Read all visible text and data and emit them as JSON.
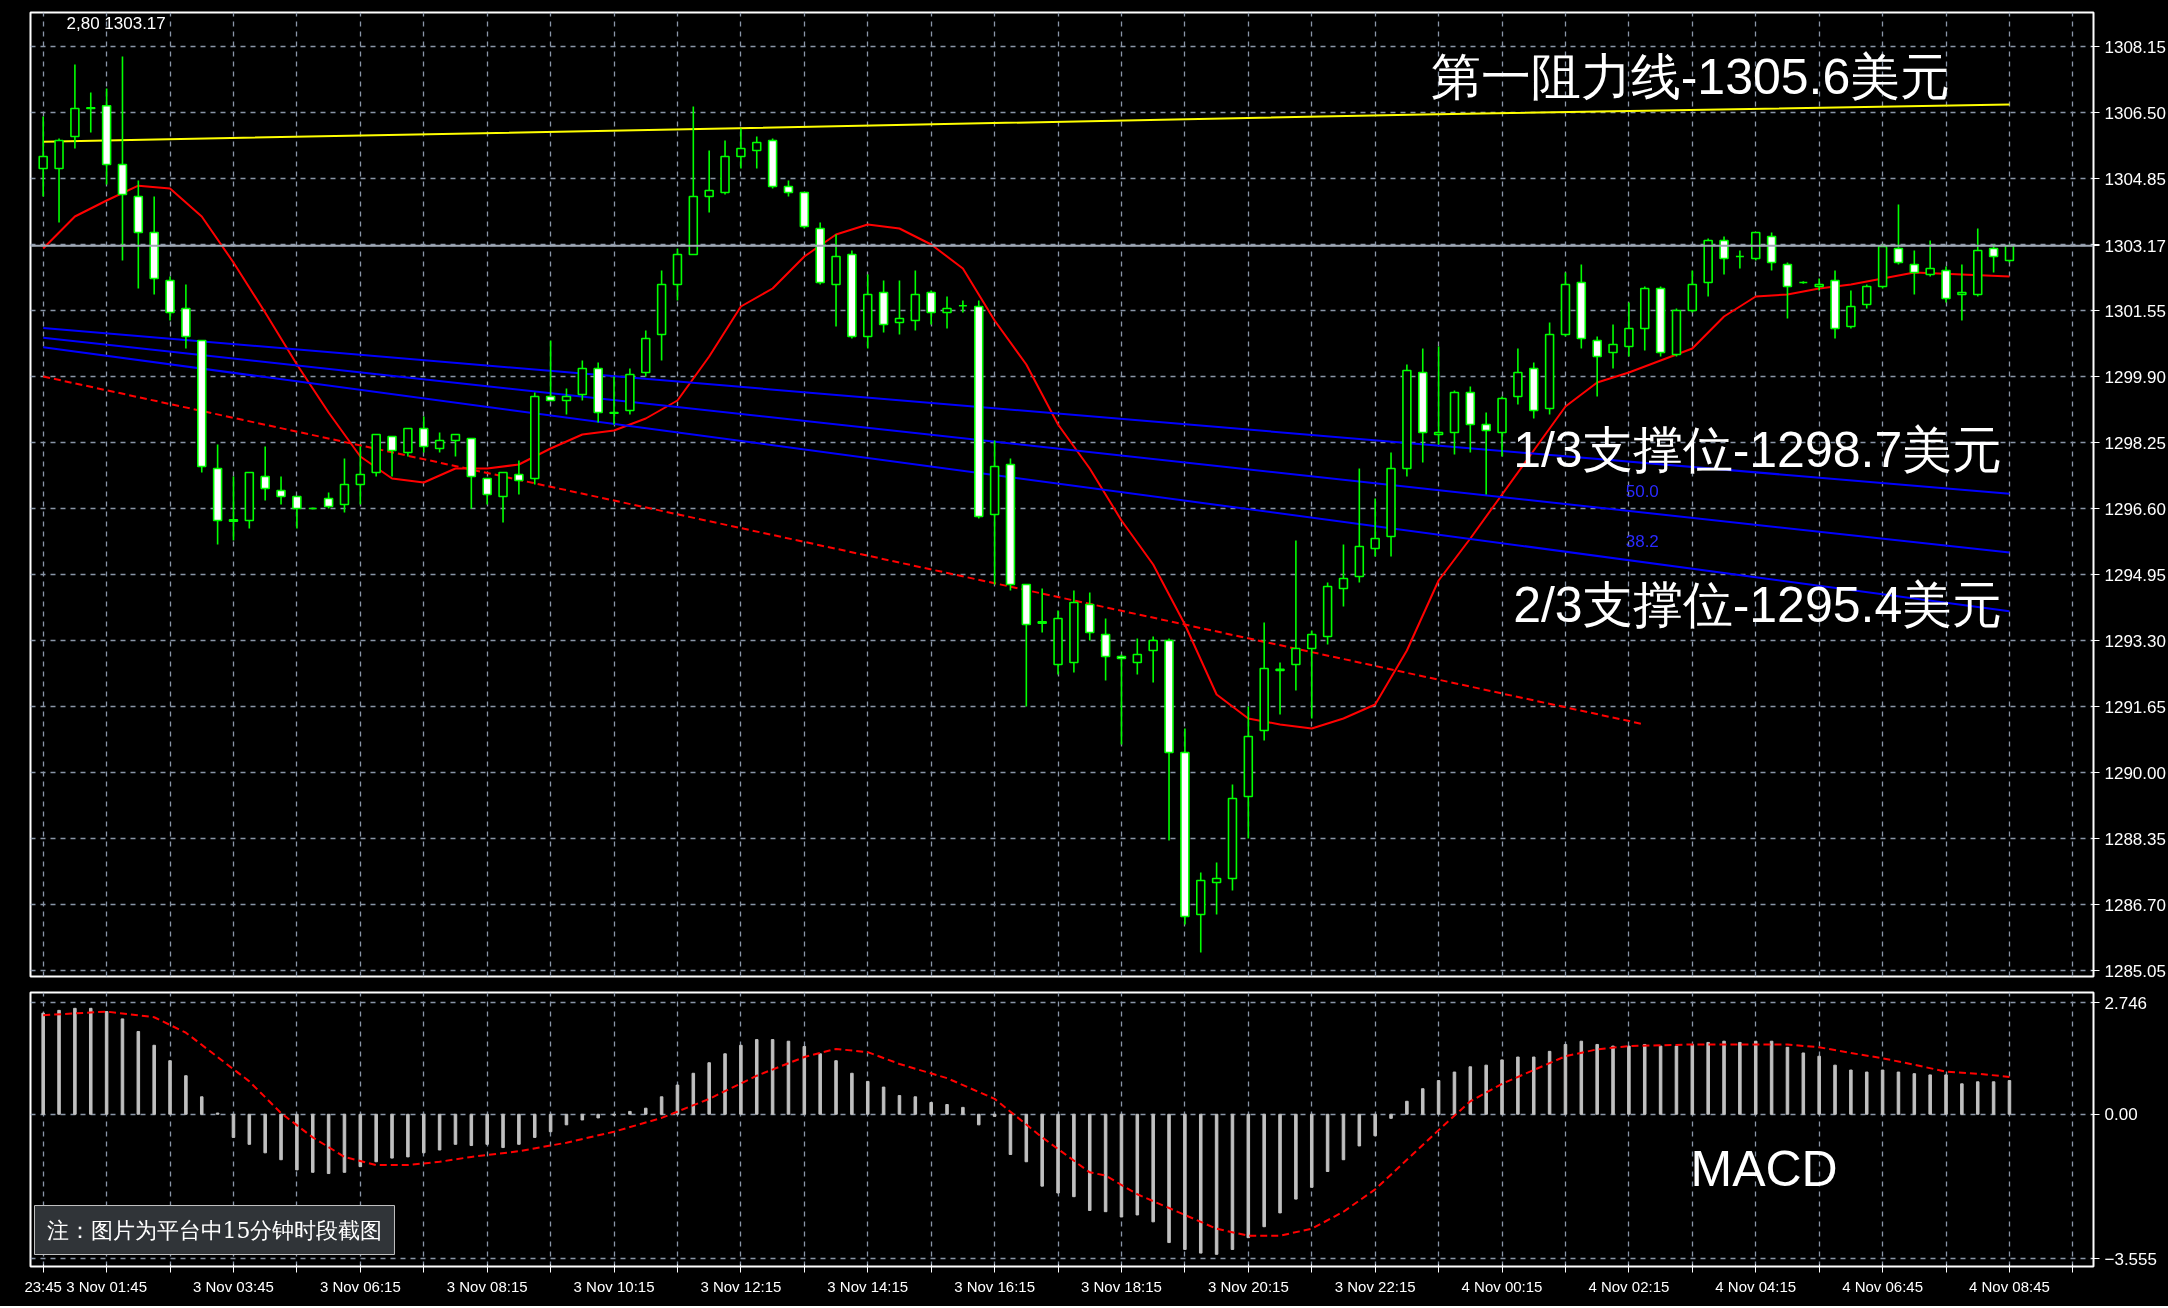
{
  "chart_data": [
    {
      "type": "candlestick",
      "categories": [
        null,
        null,
        null,
        null,
        null,
        null,
        null,
        null,
        null,
        null,
        null,
        null,
        null,
        null,
        null,
        null,
        null,
        null,
        null,
        null,
        null,
        null,
        null,
        null,
        null,
        null,
        null,
        null,
        null,
        null,
        null,
        null,
        null,
        null,
        null,
        null,
        null,
        null,
        null,
        null,
        null,
        null,
        null,
        null,
        null,
        null,
        null,
        null,
        null,
        null,
        null,
        null,
        null,
        null,
        null,
        null,
        null,
        null,
        null,
        null,
        null,
        null,
        null,
        null,
        null,
        null,
        null,
        null,
        null,
        null,
        null,
        null,
        null,
        null,
        null,
        null,
        null,
        null,
        null,
        null,
        null,
        null,
        null,
        null,
        null,
        null,
        null,
        null,
        null,
        null,
        null,
        null,
        null,
        null,
        null,
        null,
        null,
        null,
        null,
        null,
        null,
        null,
        null,
        null,
        null,
        null,
        null,
        null,
        null,
        null,
        null,
        null,
        null,
        null,
        null,
        null,
        null,
        null,
        null,
        null,
        null,
        null,
        null,
        null,
        null
      ],
      "ohlc": [
        [
          1305.1,
          1306.4,
          1304.4,
          1305.4
        ],
        [
          1305.1,
          1305.85,
          1303.75,
          1305.8
        ],
        [
          1305.9,
          1307.7,
          1305.6,
          1306.6
        ],
        [
          1306.6,
          1307.0,
          1306.0,
          1306.62
        ],
        [
          1306.67,
          1307.1,
          1304.7,
          1305.2
        ],
        [
          1305.2,
          1307.9,
          1302.8,
          1304.45
        ],
        [
          1304.4,
          1304.8,
          1302.1,
          1303.5
        ],
        [
          1303.5,
          1304.4,
          1301.95,
          1302.35
        ],
        [
          1302.3,
          1302.4,
          1301.3,
          1301.5
        ],
        [
          1301.6,
          1302.2,
          1300.6,
          1300.9
        ],
        [
          1300.8,
          1300.8,
          1297.5,
          1297.65
        ],
        [
          1297.6,
          1298.2,
          1295.7,
          1296.3
        ],
        [
          1296.32,
          1297.4,
          1295.8,
          1296.28
        ],
        [
          1296.3,
          1297.5,
          1296.1,
          1297.5
        ],
        [
          1297.4,
          1298.15,
          1296.8,
          1297.1
        ],
        [
          1297.05,
          1297.4,
          1296.7,
          1296.9
        ],
        [
          1296.9,
          1296.9,
          1296.1,
          1296.6
        ],
        [
          1296.6,
          1296.62,
          1296.58,
          1296.6
        ],
        [
          1296.85,
          1297.0,
          1296.6,
          1296.65
        ],
        [
          1296.7,
          1297.85,
          1296.5,
          1297.2
        ],
        [
          1297.2,
          1298.15,
          1296.7,
          1297.45
        ],
        [
          1297.5,
          1298.45,
          1297.4,
          1298.45
        ],
        [
          1298.4,
          1298.4,
          1297.4,
          1298.05
        ],
        [
          1298.0,
          1298.6,
          1297.9,
          1298.6
        ],
        [
          1298.6,
          1298.9,
          1298.0,
          1298.15
        ],
        [
          1298.1,
          1298.5,
          1298.0,
          1298.3
        ],
        [
          1298.3,
          1298.45,
          1297.9,
          1298.45
        ],
        [
          1298.35,
          1298.35,
          1296.6,
          1297.4
        ],
        [
          1297.35,
          1297.35,
          1296.7,
          1296.95
        ],
        [
          1296.9,
          1297.5,
          1296.25,
          1297.5
        ],
        [
          1297.45,
          1297.8,
          1296.95,
          1297.3
        ],
        [
          1297.35,
          1299.5,
          1297.2,
          1299.4
        ],
        [
          1299.4,
          1300.8,
          1299.3,
          1299.3
        ],
        [
          1299.3,
          1299.6,
          1298.95,
          1299.4
        ],
        [
          1299.45,
          1300.3,
          1299.3,
          1300.1
        ],
        [
          1300.1,
          1300.25,
          1298.75,
          1299.0
        ],
        [
          1299.0,
          1299.9,
          1298.7,
          1298.98
        ],
        [
          1299.05,
          1300.1,
          1298.95,
          1299.95
        ],
        [
          1300.0,
          1301.05,
          1299.9,
          1300.85
        ],
        [
          1300.95,
          1302.55,
          1300.3,
          1302.2
        ],
        [
          1302.2,
          1303.1,
          1301.8,
          1302.95
        ],
        [
          1302.95,
          1306.65,
          1302.95,
          1304.4
        ],
        [
          1304.4,
          1305.55,
          1304.0,
          1304.55
        ],
        [
          1304.5,
          1305.8,
          1304.45,
          1305.4
        ],
        [
          1305.4,
          1306.1,
          1305.1,
          1305.6
        ],
        [
          1305.55,
          1305.9,
          1305.1,
          1305.75
        ],
        [
          1305.8,
          1305.85,
          1304.6,
          1304.65
        ],
        [
          1304.65,
          1304.8,
          1304.4,
          1304.5
        ],
        [
          1304.5,
          1304.5,
          1303.6,
          1303.65
        ],
        [
          1303.6,
          1303.75,
          1302.2,
          1302.25
        ],
        [
          1302.2,
          1303.45,
          1301.15,
          1302.9
        ],
        [
          1302.95,
          1303.05,
          1300.85,
          1300.9
        ],
        [
          1300.9,
          1302.45,
          1300.6,
          1301.95
        ],
        [
          1302.0,
          1302.3,
          1301.0,
          1301.2
        ],
        [
          1301.25,
          1302.3,
          1300.95,
          1301.35
        ],
        [
          1301.3,
          1302.55,
          1301.05,
          1301.95
        ],
        [
          1302.0,
          1302.05,
          1301.2,
          1301.5
        ],
        [
          1301.5,
          1301.9,
          1301.1,
          1301.6
        ],
        [
          1301.67,
          1301.8,
          1301.5,
          1301.67
        ],
        [
          1301.65,
          1301.8,
          1296.35,
          1296.4
        ],
        [
          1296.45,
          1298.3,
          1294.7,
          1297.65
        ],
        [
          1297.7,
          1297.85,
          1294.55,
          1294.7
        ],
        [
          1294.7,
          1294.7,
          1291.65,
          1293.7
        ],
        [
          1293.77,
          1294.6,
          1293.5,
          1293.73
        ],
        [
          1292.7,
          1294.05,
          1292.45,
          1293.85
        ],
        [
          1292.75,
          1294.55,
          1292.5,
          1294.25
        ],
        [
          1294.2,
          1294.5,
          1293.3,
          1293.5
        ],
        [
          1293.45,
          1293.85,
          1292.3,
          1292.9
        ],
        [
          1292.9,
          1292.95,
          1290.7,
          1292.85
        ],
        [
          1292.75,
          1293.35,
          1292.45,
          1292.95
        ],
        [
          1293.05,
          1293.4,
          1292.25,
          1293.3
        ],
        [
          1293.3,
          1293.35,
          1288.3,
          1290.5
        ],
        [
          1290.5,
          1291.1,
          1286.2,
          1286.4
        ],
        [
          1286.45,
          1287.5,
          1285.5,
          1287.3
        ],
        [
          1287.25,
          1287.75,
          1286.45,
          1287.35
        ],
        [
          1287.35,
          1289.7,
          1287.05,
          1289.35
        ],
        [
          1289.4,
          1291.65,
          1288.35,
          1290.9
        ],
        [
          1291.05,
          1293.75,
          1290.8,
          1292.6
        ],
        [
          1292.55,
          1292.75,
          1291.45,
          1292.58
        ],
        [
          1292.7,
          1295.8,
          1292.05,
          1293.1
        ],
        [
          1293.1,
          1293.55,
          1291.35,
          1293.45
        ],
        [
          1293.4,
          1294.75,
          1293.2,
          1294.65
        ],
        [
          1294.6,
          1295.7,
          1294.15,
          1294.85
        ],
        [
          1294.9,
          1297.6,
          1294.75,
          1295.65
        ],
        [
          1295.6,
          1296.85,
          1295.4,
          1295.85
        ],
        [
          1295.9,
          1298.0,
          1295.4,
          1297.6
        ],
        [
          1297.6,
          1300.2,
          1297.4,
          1300.05
        ],
        [
          1300.0,
          1300.6,
          1297.75,
          1298.5
        ],
        [
          1298.45,
          1300.65,
          1298.2,
          1298.5
        ],
        [
          1298.5,
          1299.55,
          1297.95,
          1299.5
        ],
        [
          1299.5,
          1299.65,
          1298.0,
          1298.7
        ],
        [
          1298.7,
          1299.0,
          1296.95,
          1298.55
        ],
        [
          1298.5,
          1299.4,
          1297.9,
          1299.35
        ],
        [
          1299.4,
          1300.6,
          1299.2,
          1300.0
        ],
        [
          1300.1,
          1300.25,
          1298.85,
          1299.05
        ],
        [
          1299.1,
          1301.25,
          1298.95,
          1300.95
        ],
        [
          1300.95,
          1302.5,
          1300.9,
          1302.2
        ],
        [
          1302.25,
          1302.7,
          1300.6,
          1300.85
        ],
        [
          1300.8,
          1300.9,
          1299.4,
          1300.4
        ],
        [
          1300.5,
          1301.2,
          1300.1,
          1300.7
        ],
        [
          1300.65,
          1301.75,
          1300.4,
          1301.1
        ],
        [
          1301.1,
          1302.15,
          1300.55,
          1302.1
        ],
        [
          1302.1,
          1302.15,
          1300.4,
          1300.5
        ],
        [
          1300.45,
          1301.6,
          1300.4,
          1301.55
        ],
        [
          1301.55,
          1302.55,
          1301.5,
          1302.2
        ],
        [
          1302.25,
          1303.35,
          1301.9,
          1303.3
        ],
        [
          1303.3,
          1303.4,
          1302.45,
          1302.85
        ],
        [
          1302.9,
          1303.05,
          1302.6,
          1302.9
        ],
        [
          1302.85,
          1303.5,
          1302.8,
          1303.5
        ],
        [
          1303.4,
          1303.5,
          1302.55,
          1302.75
        ],
        [
          1302.7,
          1302.75,
          1301.35,
          1302.15
        ],
        [
          1302.25,
          1302.28,
          1302.22,
          1302.25
        ],
        [
          1302.15,
          1302.35,
          1302.05,
          1302.2
        ],
        [
          1302.3,
          1302.55,
          1300.85,
          1301.1
        ],
        [
          1301.15,
          1302.05,
          1301.1,
          1301.65
        ],
        [
          1301.7,
          1302.2,
          1301.6,
          1302.15
        ],
        [
          1302.15,
          1303.2,
          1302.1,
          1303.15
        ],
        [
          1303.1,
          1304.2,
          1302.7,
          1302.75
        ],
        [
          1302.7,
          1303.05,
          1301.95,
          1302.5
        ],
        [
          1302.45,
          1303.3,
          1302.4,
          1302.6
        ],
        [
          1302.55,
          1302.65,
          1301.75,
          1301.85
        ],
        [
          1301.95,
          1302.7,
          1301.3,
          1302.0
        ],
        [
          1301.95,
          1303.6,
          1301.9,
          1303.05
        ],
        [
          1303.1,
          1303.2,
          1302.5,
          1302.9
        ],
        [
          1302.8,
          1303.2,
          1302.75,
          1303.17
        ]
      ],
      "series": [
        {
          "type": "line",
          "color": "#ffff00",
          "values": [
            1305.77,
            null,
            null,
            null,
            null,
            null,
            null,
            null,
            null,
            null,
            null,
            null,
            null,
            null,
            null,
            null,
            null,
            null,
            null,
            null,
            null,
            null,
            null,
            null,
            null,
            null,
            null,
            null,
            null,
            null,
            null,
            null,
            null,
            null,
            null,
            null,
            null,
            null,
            null,
            null,
            null,
            null,
            null,
            1306.1,
            null,
            null,
            null,
            null,
            null,
            null,
            null,
            null,
            null,
            null,
            null,
            null,
            null,
            null,
            null,
            null,
            null,
            null,
            null,
            null,
            null,
            null,
            null,
            null,
            null,
            null,
            null,
            null,
            null,
            null,
            null,
            null,
            null,
            null,
            null,
            null,
            null,
            null,
            null,
            null,
            null,
            null,
            null,
            1306.45,
            null,
            null,
            null,
            null,
            null,
            null,
            null,
            null,
            null,
            null,
            null,
            null,
            null,
            null,
            null,
            null,
            null,
            null,
            null,
            null,
            null,
            null,
            null,
            null,
            null,
            null,
            null,
            null,
            null,
            null,
            null,
            null,
            null,
            null,
            null,
            null,
            1306.7
          ]
        },
        {
          "type": "line",
          "color": "#ff0000",
          "values": [
            1303.1,
            null,
            1303.9,
            null,
            1304.3,
            null,
            1304.67,
            null,
            1304.6,
            null,
            1303.9,
            null,
            1302.75,
            null,
            1301.5,
            null,
            1300.2,
            null,
            1299.0,
            null,
            1297.9,
            null,
            1297.35,
            null,
            1297.25,
            null,
            1297.6,
            null,
            1297.6,
            null,
            1297.7,
            null,
            1298.1,
            null,
            1298.45,
            null,
            1298.55,
            null,
            1298.85,
            null,
            1299.3,
            null,
            1300.4,
            null,
            1301.65,
            null,
            1302.1,
            null,
            1302.9,
            null,
            1303.45,
            null,
            1303.7,
            null,
            1303.6,
            null,
            1303.2,
            null,
            1302.6,
            null,
            1301.3,
            null,
            1300.2,
            null,
            1298.7,
            null,
            1297.6,
            null,
            1296.3,
            null,
            1295.2,
            null,
            1293.7,
            null,
            1291.95,
            null,
            1291.35,
            null,
            1291.2,
            null,
            1291.1,
            null,
            1291.35,
            null,
            1291.7,
            null,
            1293.05,
            null,
            1294.8,
            null,
            1295.85,
            null,
            1296.95,
            null,
            1298.05,
            null,
            1299.15,
            null,
            1299.75,
            null,
            1300.0,
            null,
            1300.3,
            null,
            1300.6,
            null,
            1301.4,
            null,
            1301.9,
            null,
            1301.95,
            null,
            1302.1,
            null,
            1302.2,
            null,
            null,
            null,
            1302.5,
            null,
            null,
            null,
            null,
            null,
            1302.4
          ]
        },
        {
          "type": "line",
          "color": "#0000ff",
          "values": [
            1301.11,
            null,
            null,
            null,
            null,
            null,
            null,
            null,
            null,
            null,
            null,
            null,
            null,
            null,
            null,
            null,
            null,
            null,
            null,
            null,
            null,
            null,
            null,
            null,
            null,
            null,
            null,
            null,
            null,
            null,
            null,
            null,
            null,
            null,
            null,
            null,
            null,
            null,
            null,
            null,
            null,
            null,
            null,
            null,
            null,
            null,
            null,
            null,
            null,
            null,
            null,
            null,
            null,
            null,
            null,
            null,
            null,
            null,
            null,
            null,
            null,
            null,
            null,
            null,
            null,
            null,
            null,
            null,
            null,
            null,
            null,
            null,
            null,
            null,
            null,
            null,
            null,
            null,
            null,
            null,
            null,
            null,
            null,
            null,
            null,
            null,
            null,
            null,
            null,
            null,
            null,
            null,
            null,
            null,
            null,
            null,
            null,
            null,
            null,
            null,
            null,
            null,
            null,
            null,
            null,
            null,
            null,
            null,
            null,
            null,
            null,
            null,
            null,
            null,
            null,
            null,
            null,
            null,
            null,
            null,
            null,
            null,
            null,
            null,
            1296.97
          ]
        },
        {
          "type": "line",
          "color": "#0000ff",
          "values": [
            1300.87,
            null,
            null,
            null,
            null,
            null,
            null,
            null,
            null,
            null,
            null,
            null,
            null,
            null,
            null,
            null,
            null,
            null,
            null,
            null,
            null,
            null,
            null,
            null,
            null,
            null,
            null,
            null,
            null,
            null,
            null,
            null,
            null,
            null,
            null,
            null,
            null,
            null,
            null,
            null,
            null,
            null,
            null,
            null,
            null,
            null,
            null,
            null,
            null,
            null,
            null,
            null,
            null,
            null,
            null,
            null,
            null,
            null,
            null,
            null,
            null,
            null,
            null,
            null,
            null,
            null,
            null,
            null,
            null,
            null,
            null,
            null,
            null,
            null,
            null,
            null,
            null,
            null,
            null,
            null,
            null,
            null,
            null,
            null,
            null,
            null,
            null,
            null,
            null,
            null,
            null,
            null,
            null,
            null,
            null,
            null,
            null,
            null,
            null,
            null,
            null,
            null,
            null,
            null,
            null,
            null,
            null,
            null,
            null,
            null,
            null,
            null,
            null,
            null,
            null,
            null,
            null,
            null,
            null,
            null,
            null,
            null,
            null,
            null,
            1295.5
          ]
        },
        {
          "type": "line",
          "color": "#0000ff",
          "values": [
            1300.63,
            null,
            null,
            null,
            null,
            null,
            null,
            null,
            null,
            null,
            null,
            null,
            null,
            null,
            null,
            null,
            null,
            null,
            null,
            null,
            null,
            null,
            null,
            null,
            null,
            null,
            null,
            null,
            null,
            null,
            null,
            null,
            null,
            null,
            null,
            null,
            null,
            null,
            null,
            null,
            null,
            null,
            null,
            null,
            null,
            null,
            null,
            null,
            null,
            null,
            null,
            null,
            null,
            null,
            null,
            null,
            null,
            null,
            null,
            null,
            null,
            null,
            null,
            null,
            null,
            null,
            null,
            null,
            null,
            null,
            null,
            null,
            null,
            null,
            null,
            null,
            null,
            null,
            null,
            null,
            null,
            null,
            null,
            null,
            null,
            null,
            null,
            null,
            null,
            null,
            null,
            null,
            null,
            null,
            null,
            null,
            null,
            null,
            null,
            null,
            null,
            null,
            null,
            null,
            null,
            null,
            null,
            null,
            null,
            null,
            null,
            null,
            null,
            null,
            null,
            null,
            null,
            null,
            null,
            null,
            null,
            null,
            null,
            null,
            1294.03
          ]
        },
        {
          "type": "line",
          "color": "#ff0000",
          "line_style": "dashed",
          "values": [
            1299.9,
            null,
            null,
            null,
            null,
            null,
            null,
            null,
            null,
            null,
            null,
            null,
            null,
            null,
            null,
            null,
            null,
            null,
            null,
            null,
            null,
            null,
            null,
            null,
            null,
            null,
            null,
            null,
            null,
            null,
            null,
            null,
            null,
            null,
            null,
            null,
            null,
            null,
            null,
            null,
            null,
            null,
            null,
            null,
            null,
            null,
            null,
            null,
            null,
            null,
            null,
            null,
            null,
            null,
            null,
            null,
            null,
            null,
            null,
            null,
            null,
            null,
            null,
            null,
            null,
            null,
            null,
            null,
            null,
            null,
            null,
            null,
            null,
            null,
            null,
            null,
            null,
            null,
            null,
            null,
            null,
            null,
            null,
            null,
            null,
            null,
            null,
            null,
            null,
            null,
            null,
            null,
            null,
            null,
            null,
            null,
            null,
            null,
            null,
            null,
            null,
            1291.2,
            null,
            null,
            null,
            null,
            null,
            null,
            null,
            null,
            null,
            null,
            null,
            null,
            null,
            null,
            null,
            null,
            null,
            null,
            null,
            null,
            null,
            null,
            null
          ]
        }
      ],
      "ylim": [
        1284.9,
        1309.0
      ],
      "yticks": [
        1285.05,
        {
          "value": 1286.7,
          "label": "1286.70"
        },
        1288.35,
        {
          "value": 1290.0,
          "label": "1290.00"
        },
        1291.65,
        {
          "value": 1293.3,
          "label": "1293.30"
        },
        1294.95,
        {
          "value": 1296.6,
          "label": "1296.60"
        },
        1298.25,
        {
          "value": 1299.9,
          "label": "1299.90"
        },
        1301.55,
        {
          "value": 1303.2,
          "label": null
        },
        1304.85,
        {
          "value": 1306.5,
          "label": "1306.50"
        },
        1308.15
      ],
      "tick_labels": "y",
      "grid": true,
      "ref_lines": [
        {
          "axis": "y",
          "value": 1303.17,
          "label": "1303.17",
          "color": "#a0a8b4"
        }
      ],
      "annotations": [
        "2,80 1303.17",
        "第一阻力线-1305.6美元",
        "1/3支撑位-1298.7美元",
        "2/3支撑位-1295.4美元",
        "50.0",
        "38.2"
      ]
    },
    {
      "type": "bar",
      "categories": [
        "23:45",
        null,
        null,
        null,
        "3 Nov 01:45",
        null,
        null,
        null,
        null,
        null,
        null,
        null,
        "3 Nov 03:45",
        null,
        null,
        null,
        null,
        null,
        null,
        null,
        "3 Nov 06:15",
        null,
        null,
        null,
        null,
        null,
        null,
        null,
        "3 Nov 08:15",
        null,
        null,
        null,
        null,
        null,
        null,
        null,
        "3 Nov 10:15",
        null,
        null,
        null,
        null,
        null,
        null,
        null,
        "3 Nov 12:15",
        null,
        null,
        null,
        null,
        null,
        null,
        null,
        "3 Nov 14:15",
        null,
        null,
        null,
        null,
        null,
        null,
        null,
        "3 Nov 16:15",
        null,
        null,
        null,
        null,
        null,
        null,
        null,
        "3 Nov 18:15",
        null,
        null,
        null,
        null,
        null,
        null,
        null,
        "3 Nov 20:15",
        null,
        null,
        null,
        null,
        null,
        null,
        null,
        "3 Nov 22:15",
        null,
        null,
        null,
        null,
        null,
        null,
        null,
        "4 Nov 00:15",
        null,
        null,
        null,
        null,
        null,
        null,
        null,
        "4 Nov 02:15",
        null,
        null,
        null,
        null,
        null,
        null,
        null,
        "4 Nov 04:15",
        null,
        null,
        null,
        null,
        null,
        null,
        null,
        "4 Nov 06:45",
        null,
        null,
        null,
        null,
        null,
        null,
        null,
        "4 Nov 08:45"
      ],
      "series": [
        {
          "type": "bar",
          "color": "#c0c0c0",
          "values": [
            2.49,
            2.56,
            2.61,
            2.61,
            2.53,
            2.35,
            2.04,
            1.7,
            1.32,
            0.95,
            0.43,
            0.03,
            -0.57,
            -0.74,
            -0.95,
            -1.12,
            -1.37,
            -1.43,
            -1.46,
            -1.43,
            -1.29,
            -1.17,
            -1.08,
            -1.05,
            -0.95,
            -0.88,
            -0.74,
            -0.77,
            -0.74,
            -0.82,
            -0.74,
            -0.57,
            -0.43,
            -0.26,
            -0.14,
            -0.09,
            -0.02,
            0.07,
            0.15,
            0.43,
            0.72,
            1.01,
            1.27,
            1.49,
            1.7,
            1.84,
            1.84,
            1.8,
            1.67,
            1.49,
            1.32,
            1.01,
            0.81,
            0.67,
            0.46,
            0.43,
            0.29,
            0.24,
            0.17,
            -0.26,
            -0.05,
            -0.99,
            -1.17,
            -1.77,
            -1.94,
            -2.03,
            -2.37,
            -2.4,
            -2.53,
            -2.48,
            -2.65,
            -3.16,
            -3.33,
            -3.42,
            -3.45,
            -3.33,
            -3.04,
            -2.77,
            -2.43,
            -2.09,
            -1.8,
            -1.41,
            -1.12,
            -0.78,
            -0.53,
            -0.1,
            0.32,
            0.63,
            0.83,
            1.04,
            1.17,
            1.21,
            1.34,
            1.41,
            1.41,
            1.55,
            1.72,
            1.8,
            1.72,
            1.68,
            1.68,
            1.72,
            1.68,
            1.68,
            1.72,
            1.77,
            1.8,
            1.77,
            1.8,
            1.8,
            1.65,
            1.51,
            1.43,
            1.21,
            1.09,
            1.04,
            1.09,
            1.04,
            1.0,
            0.97,
            0.97,
            0.75,
            0.8,
            0.8,
            0.83
          ]
        },
        {
          "type": "line",
          "color": "#ff0000",
          "line_style": "dashed",
          "values": [
            2.44,
            null,
            null,
            null,
            2.53,
            null,
            null,
            2.39,
            null,
            2.01,
            null,
            1.41,
            null,
            0.81,
            null,
            0.03,
            null,
            -0.57,
            null,
            -1.05,
            null,
            -1.25,
            null,
            -1.25,
            null,
            -1.17,
            null,
            -1.05,
            null,
            null,
            -0.91,
            null,
            null,
            -0.7,
            null,
            null,
            -0.43,
            null,
            null,
            -0.09,
            null,
            null,
            0.38,
            null,
            null,
            0.95,
            null,
            null,
            1.41,
            null,
            1.61,
            null,
            1.53,
            null,
            1.24,
            null,
            null,
            0.89,
            null,
            null,
            0.38,
            null,
            null,
            -0.57,
            null,
            null,
            -1.43,
            -1.51,
            null,
            -1.97,
            null,
            null,
            -2.48,
            null,
            -2.82,
            null,
            -2.99,
            null,
            -2.99,
            null,
            -2.82,
            null,
            -2.4,
            null,
            -1.85,
            null,
            -1.12,
            null,
            -0.39,
            null,
            0.32,
            null,
            0.75,
            null,
            1.09,
            null,
            1.43,
            null,
            1.6,
            null,
            1.68,
            null,
            null,
            null,
            1.72,
            null,
            null,
            null,
            1.72,
            null,
            1.72,
            null,
            1.65,
            null,
            1.51,
            null,
            1.38,
            null,
            1.22,
            null,
            1.05,
            null,
            1.0,
            null,
            0.92
          ]
        }
      ],
      "ylim": [
        -3.75,
        3.0
      ],
      "yticks": [
        2.746,
        {
          "value": 0,
          "label": "0.00"
        },
        -3.555
      ],
      "grid": true,
      "annotations": [
        "MACD",
        "注：图片为平台中15分钟时段截图"
      ]
    }
  ]
}
